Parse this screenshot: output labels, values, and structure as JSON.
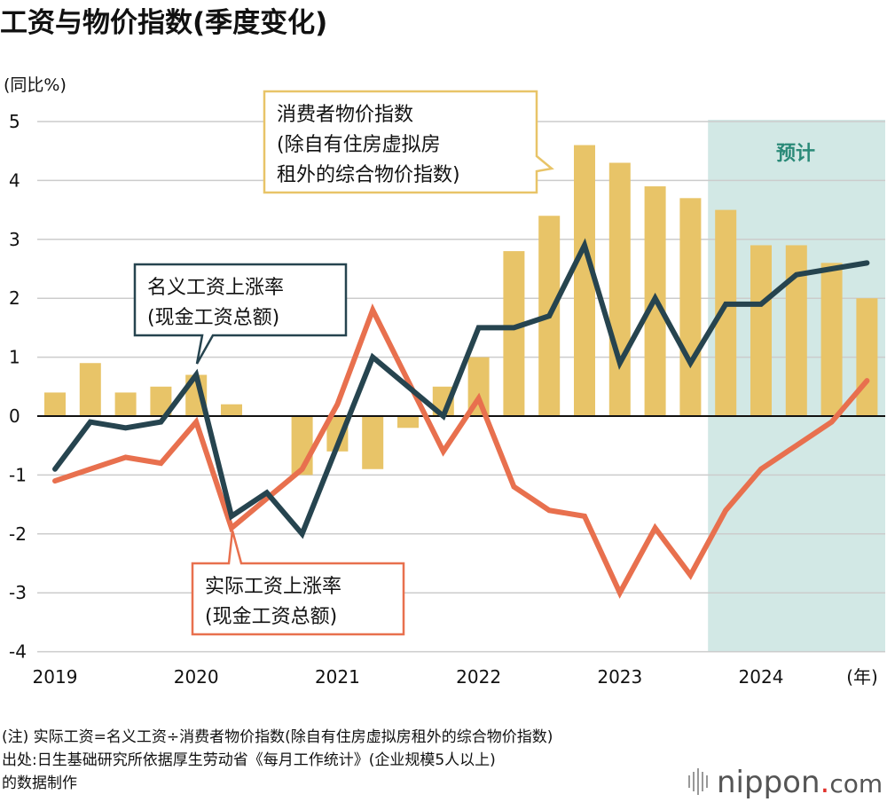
{
  "chart_data": {
    "type": "bar+line",
    "title": "工资与物价指数(季度变化)",
    "ylabel": "(同比%)",
    "xlabel_unit": "(年)",
    "ylim": [
      -4,
      5
    ],
    "yticks": [
      "5",
      "4",
      "3",
      "2",
      "1",
      "0",
      "-1",
      "-2",
      "-3",
      "-4"
    ],
    "ytick_values": [
      5,
      4,
      3,
      2,
      1,
      0,
      -1,
      -2,
      -3,
      -4
    ],
    "xtick_labels": [
      "2019",
      "2020",
      "2021",
      "2022",
      "2023",
      "2024"
    ],
    "xtick_quarter_index": [
      0,
      4,
      8,
      12,
      16,
      20
    ],
    "quarters": [
      "2019Q1",
      "2019Q2",
      "2019Q3",
      "2019Q4",
      "2020Q1",
      "2020Q2",
      "2020Q3",
      "2020Q4",
      "2021Q1",
      "2021Q2",
      "2021Q3",
      "2021Q4",
      "2022Q1",
      "2022Q2",
      "2022Q3",
      "2022Q4",
      "2023Q1",
      "2023Q2",
      "2023Q3",
      "2023Q4",
      "2024Q1",
      "2024Q2",
      "2024Q3",
      "2024Q4"
    ],
    "forecast_start_index": 19,
    "forecast_label": "预计",
    "series": [
      {
        "name": "消费者物价指数(除自有住房虚拟房租外的综合物价指数)",
        "type": "bar",
        "color": "#e8c468",
        "values": [
          0.4,
          0.9,
          0.4,
          0.5,
          0.7,
          0.2,
          0,
          -1.0,
          -0.6,
          -0.9,
          -0.2,
          0.5,
          1.0,
          2.8,
          3.4,
          4.6,
          4.3,
          3.9,
          3.7,
          3.5,
          2.9,
          2.9,
          2.6,
          2.0
        ]
      },
      {
        "name": "名义工资上涨率(现金工资总额)",
        "type": "line",
        "color": "#26444f",
        "values": [
          -0.9,
          -0.1,
          -0.2,
          -0.1,
          0.7,
          -1.7,
          -1.3,
          -2.0,
          -0.5,
          1.0,
          0.5,
          0.0,
          1.5,
          1.5,
          1.7,
          2.9,
          0.9,
          2.0,
          0.9,
          1.9,
          1.9,
          2.4,
          2.5,
          2.6
        ]
      },
      {
        "name": "实际工资上涨率(现金工资总额)",
        "type": "line",
        "color": "#e8704e",
        "values": [
          -1.1,
          -0.9,
          -0.7,
          -0.8,
          -0.1,
          -1.9,
          -1.4,
          -0.9,
          0.2,
          1.8,
          0.6,
          -0.6,
          0.3,
          -1.2,
          -1.6,
          -1.7,
          -3.0,
          -1.9,
          -2.7,
          -1.6,
          -0.9,
          -0.5,
          -0.1,
          0.6
        ]
      }
    ],
    "callouts": {
      "cpi": [
        "消费者物价指数",
        "(除自有住房虚拟房",
        "租外的综合物价指数)"
      ],
      "nominal": [
        "名义工资上涨率",
        "(现金工资总额)"
      ],
      "real": [
        "实际工资上涨率",
        "(现金工资总额)"
      ]
    },
    "grid": true
  },
  "notes": [
    "(注) 实际工资=名义工资÷消费者物价指数(除自有住房虚拟房租外的综合物价指数)",
    "出处:日生基础研究所依据厚生劳动省《每月工作统计》(企业规模5人以上)",
    "的数据制作"
  ],
  "logo": {
    "text": "nippon",
    "dot": ".",
    "suffix": "com"
  }
}
